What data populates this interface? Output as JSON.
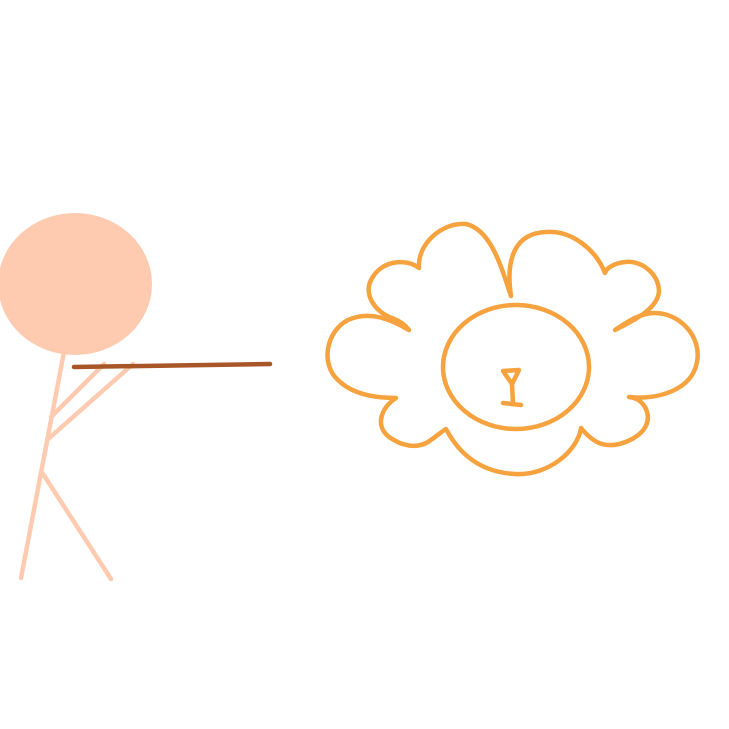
{
  "colors": {
    "background": "#ffffff",
    "person": "#FFCBB0",
    "stick": "#A85628",
    "lion": "#F6A23E"
  },
  "icons": {
    "person": "stick-figure-icon",
    "stick": "pointing-stick-icon",
    "lion": "lion-face-icon"
  }
}
